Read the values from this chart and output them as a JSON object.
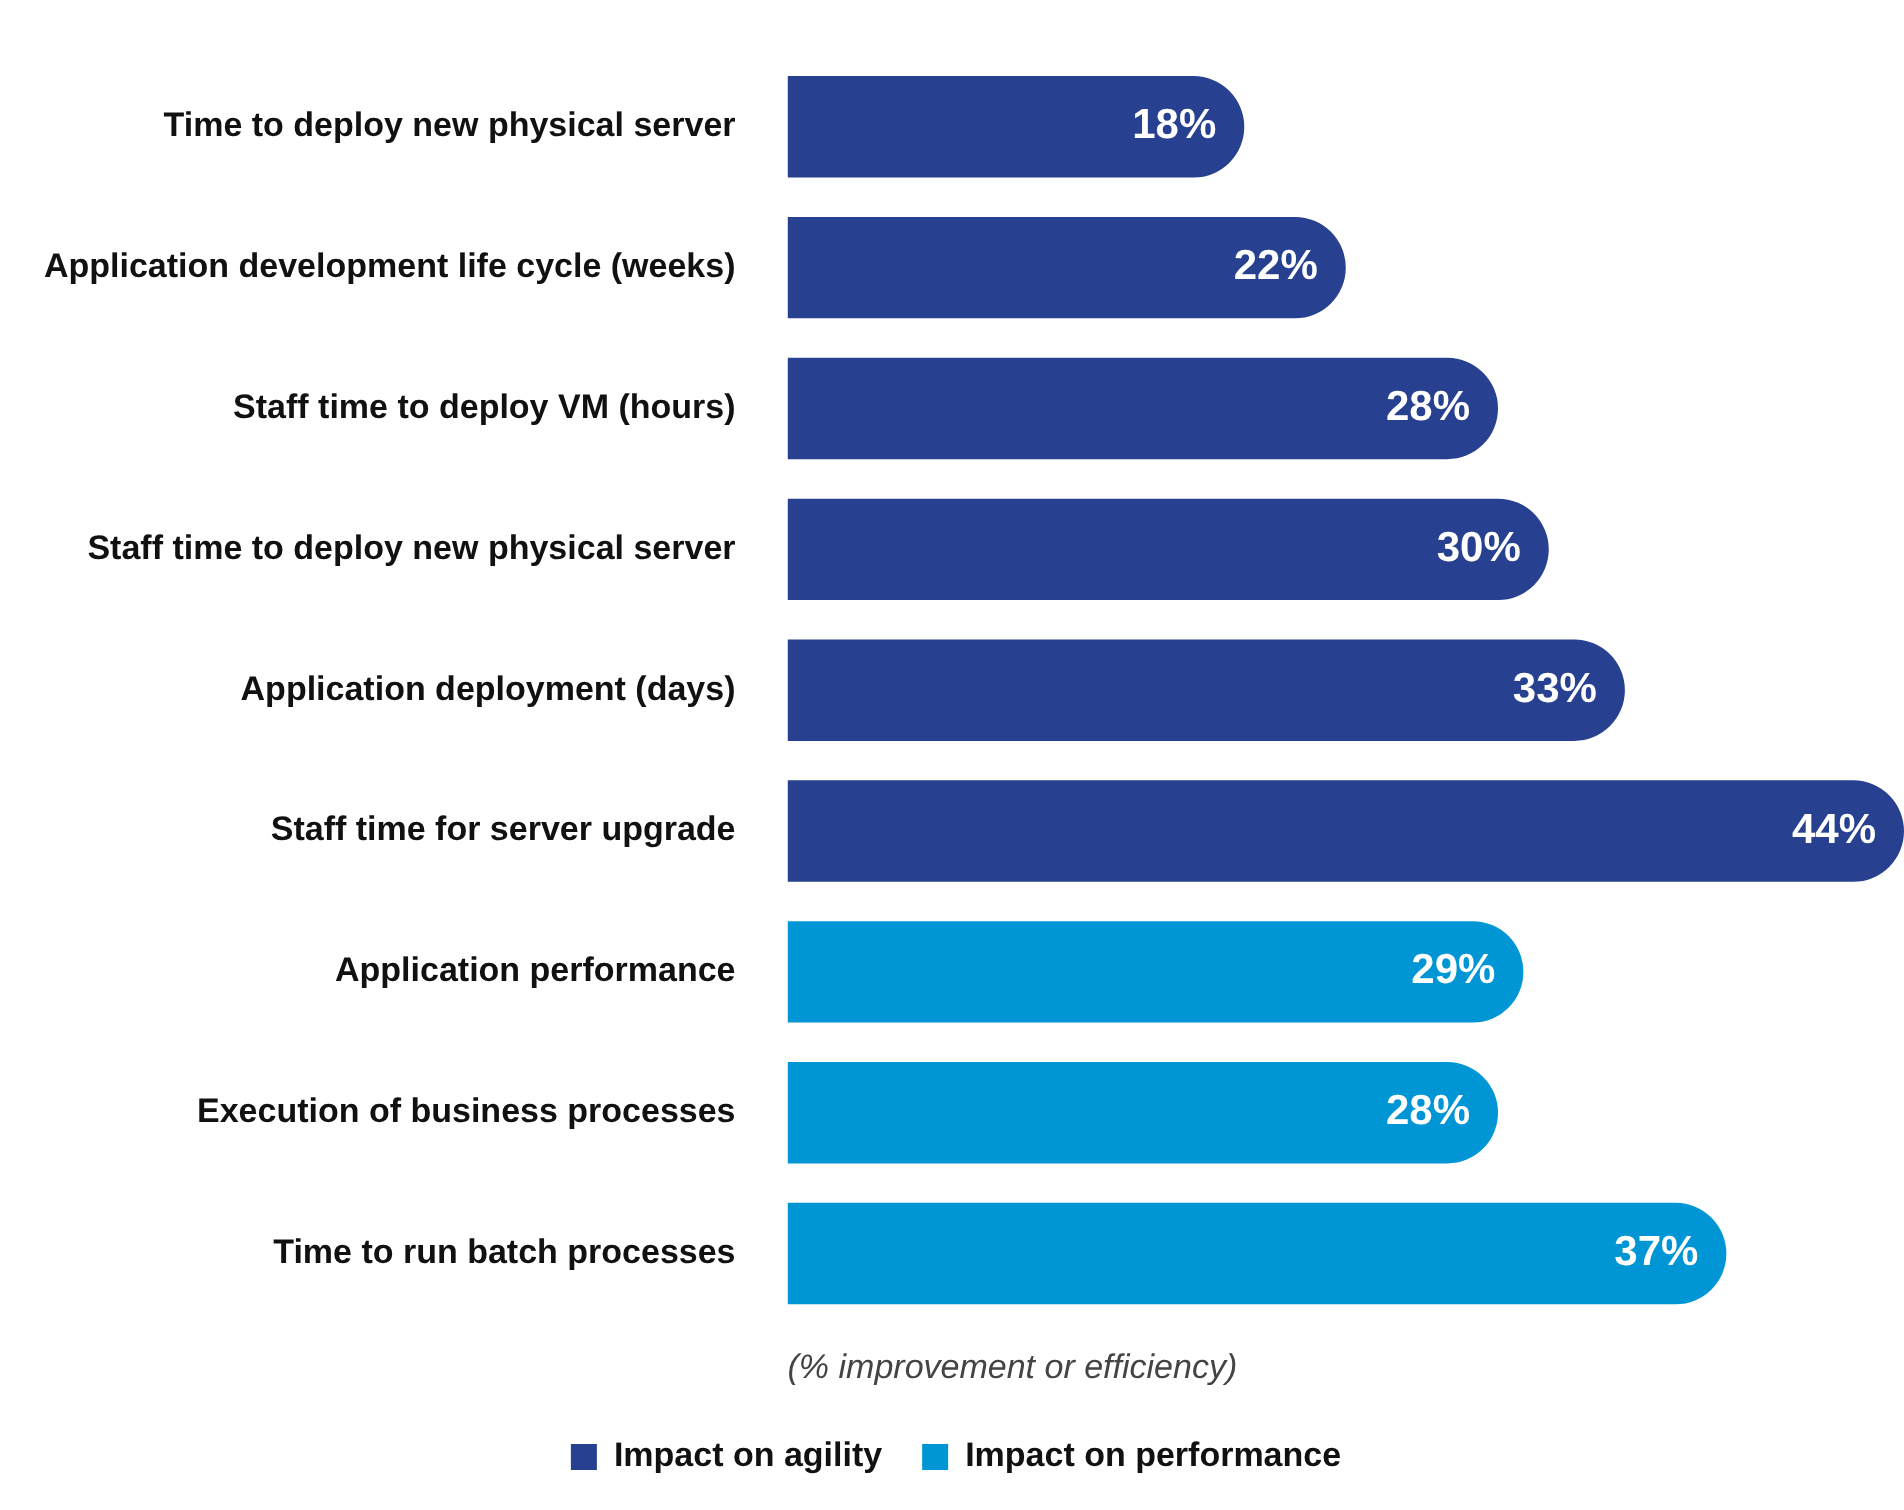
{
  "chart_data": {
    "type": "bar",
    "orientation": "horizontal",
    "stacked": true,
    "categories": [
      "Time to deploy new physical server",
      "Application development life cycle (weeks)",
      "Staff time to deploy VM (hours)",
      "Staff time to deploy new physical server",
      "Application deployment (days)",
      "Staff time for server upgrade",
      "Application performance",
      "Execution of business processes",
      "Time to run batch processes"
    ],
    "series": [
      {
        "name": "Impact on agility",
        "color": "#27408f",
        "values": [
          18,
          22,
          28,
          30,
          33,
          44,
          null,
          null,
          null
        ],
        "value_labels": [
          "18%",
          "22%",
          "28%",
          "30%",
          "33%",
          "44%",
          null,
          null,
          null
        ]
      },
      {
        "name": "Impact on performance",
        "color": "#0096d6",
        "values": [
          null,
          null,
          null,
          null,
          null,
          null,
          29,
          28,
          37
        ],
        "value_labels": [
          null,
          null,
          null,
          null,
          null,
          null,
          "29%",
          "28%",
          "37%"
        ]
      }
    ],
    "xlim": [
      0,
      44
    ],
    "tick_labels": "y",
    "legend": "bottom",
    "annotations": [
      "(% improvement or efficiency)"
    ]
  }
}
